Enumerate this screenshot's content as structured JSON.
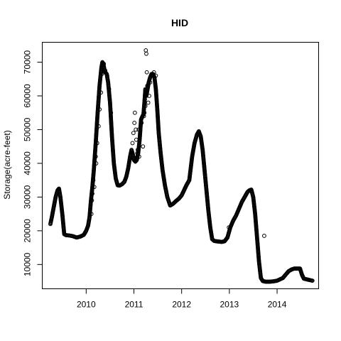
{
  "chart_data": {
    "type": "scatter",
    "title": "HID",
    "xlabel": "",
    "ylabel": "Storage(acre-feet)",
    "xlim": [
      2009.08,
      2014.87
    ],
    "ylim": [
      2800,
      75900
    ],
    "x_ticks": [
      {
        "value": 2010,
        "label": "2010"
      },
      {
        "value": 2011,
        "label": "2011"
      },
      {
        "value": 2012,
        "label": "2012"
      },
      {
        "value": 2013,
        "label": "2013"
      },
      {
        "value": 2014,
        "label": "2014"
      }
    ],
    "y_ticks": [
      {
        "value": 10000,
        "label": "10000"
      },
      {
        "value": 20000,
        "label": "20000"
      },
      {
        "value": 30000,
        "label": "30000"
      },
      {
        "value": 40000,
        "label": "40000"
      },
      {
        "value": 50000,
        "label": "50000"
      },
      {
        "value": 60000,
        "label": "60000"
      },
      {
        "value": 70000,
        "label": "70000"
      }
    ],
    "grid": false,
    "legend": "none",
    "marker": "open-circle",
    "series": [
      {
        "x": [
          2009.25,
          2009.28,
          2009.32,
          2009.36,
          2009.4,
          2009.43,
          2009.46,
          2009.5,
          2009.54,
          2009.58,
          2009.65,
          2009.72,
          2009.8,
          2009.88,
          2009.95,
          2010.0,
          2010.04,
          2010.07,
          2010.1,
          2010.13,
          2010.16,
          2010.2,
          2010.24,
          2010.28,
          2010.32,
          2010.34,
          2010.36,
          2010.38,
          2010.4,
          2010.43,
          2010.46,
          2010.5,
          2010.54,
          2010.58,
          2010.62,
          2010.66,
          2010.7,
          2010.75,
          2010.8,
          2010.84,
          2010.88,
          2010.92,
          2010.95,
          2010.98,
          2011.0,
          2011.03,
          2011.06,
          2011.09,
          2011.12,
          2011.15,
          2011.18,
          2011.2,
          2011.22,
          2011.24,
          2011.26,
          2011.28,
          2011.31,
          2011.34,
          2011.37,
          2011.4,
          2011.43,
          2011.46,
          2011.49,
          2011.52,
          2011.56,
          2011.6,
          2011.65,
          2011.7,
          2011.76,
          2011.82,
          2011.88,
          2011.94,
          2012.0,
          2012.05,
          2012.1,
          2012.16,
          2012.22,
          2012.27,
          2012.32,
          2012.36,
          2012.4,
          2012.44,
          2012.48,
          2012.52,
          2012.56,
          2012.6,
          2012.64,
          2012.68,
          2012.72,
          2012.78,
          2012.84,
          2012.9,
          2012.96,
          2013.02,
          2013.08,
          2013.14,
          2013.2,
          2013.26,
          2013.32,
          2013.38,
          2013.42,
          2013.46,
          2013.5,
          2013.54,
          2013.58,
          2013.62,
          2013.66,
          2013.7,
          2013.76,
          2013.84,
          2013.92,
          2014.0,
          2014.06,
          2014.12,
          2014.18,
          2014.24,
          2014.3,
          2014.36,
          2014.42,
          2014.48,
          2014.52,
          2014.56,
          2014.62,
          2014.68,
          2014.74
        ],
        "y": [
          22000,
          24000,
          27000,
          30000,
          32000,
          32500,
          30000,
          25000,
          19000,
          18700,
          18600,
          18400,
          18000,
          18300,
          18800,
          20000,
          21500,
          24000,
          29000,
          33000,
          38000,
          46000,
          55000,
          63000,
          68500,
          70000,
          69500,
          68000,
          67000,
          66500,
          64000,
          58000,
          48000,
          40000,
          35500,
          33500,
          33400,
          33800,
          34500,
          36000,
          38500,
          42000,
          44000,
          42500,
          41000,
          40500,
          41000,
          43000,
          47000,
          53000,
          54000,
          54500,
          58000,
          62000,
          60000,
          61500,
          64000,
          65500,
          66500,
          66500,
          65500,
          62000,
          56000,
          49000,
          43000,
          38000,
          33500,
          30000,
          27500,
          28000,
          28800,
          29500,
          30500,
          32000,
          33500,
          35000,
          42000,
          46000,
          48500,
          49500,
          48000,
          44000,
          38000,
          32000,
          26000,
          21000,
          17500,
          17000,
          16900,
          16800,
          16700,
          16900,
          18000,
          21000,
          23000,
          24500,
          26500,
          28500,
          30000,
          31500,
          32000,
          32200,
          30000,
          25000,
          18000,
          11000,
          6000,
          5100,
          4900,
          4900,
          5000,
          5200,
          5600,
          6000,
          7000,
          8000,
          8500,
          8800,
          8800,
          8800,
          7000,
          5800,
          5600,
          5400,
          5200
        ]
      },
      {
        "x": [
          2010.11,
          2010.12,
          2010.13,
          2010.15,
          2010.17,
          2010.2,
          2010.21,
          2010.23,
          2010.26,
          2010.28,
          2010.31,
          2010.33,
          2010.35,
          2010.37,
          2010.4,
          2010.44,
          2010.48,
          2010.52,
          2010.95,
          2010.97,
          2010.99,
          2011.01,
          2011.02,
          2011.04,
          2011.05,
          2011.07,
          2011.08,
          2011.1,
          2011.11,
          2011.13,
          2011.16,
          2011.19,
          2011.21,
          2011.22,
          2011.23,
          2011.24,
          2011.25,
          2011.26,
          2011.27,
          2011.28,
          2011.29,
          2011.3,
          2011.32,
          2011.34,
          2011.38,
          2011.42,
          2011.46,
          2013.73,
          2012.99
        ],
        "y": [
          25000,
          29000,
          31000,
          35000,
          33000,
          42000,
          40000,
          46000,
          51000,
          56000,
          61000,
          66500,
          68500,
          69500,
          67500,
          66000,
          62000,
          55000,
          43000,
          46000,
          49000,
          52000,
          55000,
          50000,
          47000,
          43000,
          44000,
          50000,
          42000,
          49000,
          52000,
          45000,
          54000,
          55000,
          59000,
          57000,
          73500,
          72500,
          67000,
          63000,
          62500,
          58000,
          60000,
          64000,
          66000,
          67000,
          66000,
          18500,
          21000
        ]
      }
    ]
  }
}
